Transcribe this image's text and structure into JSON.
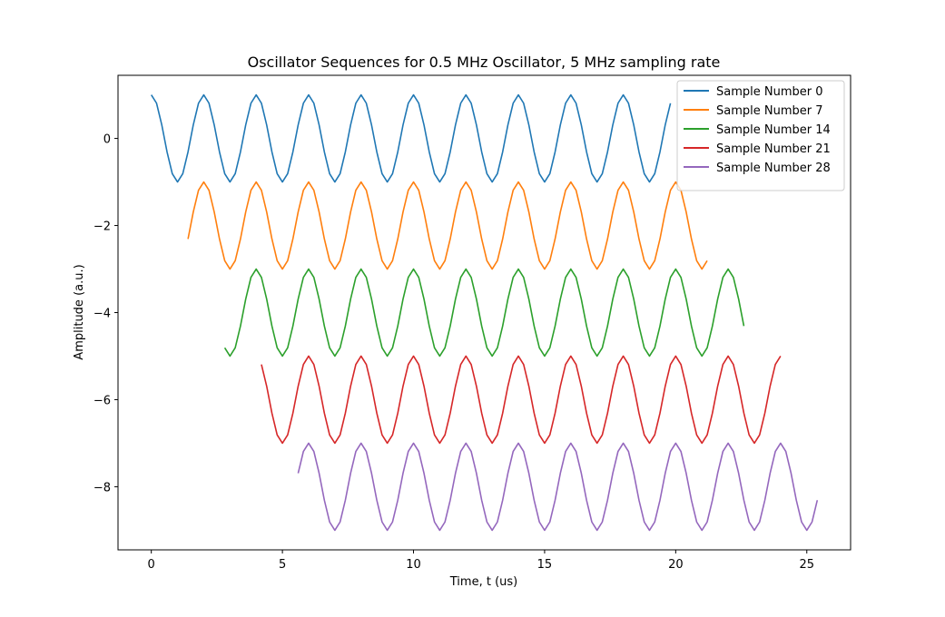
{
  "chart_data": {
    "type": "line",
    "title": "Oscillator Sequences for 0.5 MHz Oscillator, 5 MHz sampling rate",
    "xlabel": "Time, t (us)",
    "ylabel": "Amplitude (a.u.)",
    "xlim": [
      -1.27,
      26.67
    ],
    "ylim": [
      -9.45,
      1.45
    ],
    "xticks": [
      0,
      5,
      10,
      15,
      20,
      25
    ],
    "yticks": [
      0,
      -2,
      -4,
      -6,
      -8
    ],
    "grid": false,
    "legend_position": "top-right",
    "oscillator_frequency_mhz": 0.5,
    "sampling_rate_mhz": 5,
    "samples_per_sequence": 100,
    "series": [
      {
        "name": "Sample Number 0",
        "start_sample": 0,
        "offset": 0,
        "color": "#1f77b4"
      },
      {
        "name": "Sample Number 7",
        "start_sample": 7,
        "offset": -2,
        "color": "#ff7f0e"
      },
      {
        "name": "Sample Number 14",
        "start_sample": 14,
        "offset": -4,
        "color": "#2ca02c"
      },
      {
        "name": "Sample Number 21",
        "start_sample": 21,
        "offset": -6,
        "color": "#d62728"
      },
      {
        "name": "Sample Number 28",
        "start_sample": 28,
        "offset": -8,
        "color": "#9467bd"
      }
    ]
  }
}
